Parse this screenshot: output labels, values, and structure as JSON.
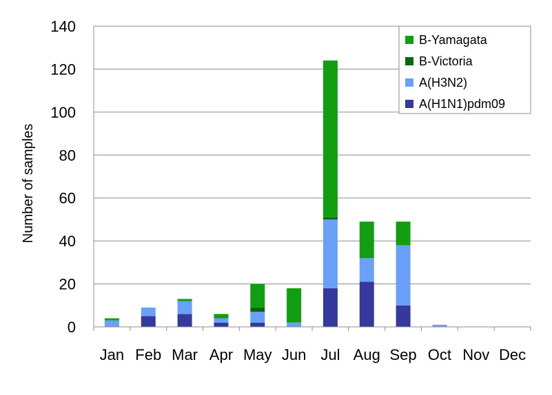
{
  "chart_data": {
    "type": "bar",
    "stacked": true,
    "title": "",
    "xlabel": "",
    "ylabel": "Number of samples",
    "ylim": [
      0,
      140
    ],
    "yticks": [
      0,
      20,
      40,
      60,
      80,
      100,
      120,
      140
    ],
    "grid": true,
    "legend_position": "top-right",
    "categories": [
      "Jan",
      "Feb",
      "Mar",
      "Apr",
      "May",
      "Jun",
      "Jul",
      "Aug",
      "Sep",
      "Oct",
      "Nov",
      "Dec"
    ],
    "series": [
      {
        "name": "A(H1N1)pdm09",
        "color": "#35399b",
        "values": [
          0,
          5,
          6,
          2,
          2,
          0,
          18,
          21,
          10,
          0,
          0,
          0
        ]
      },
      {
        "name": "A(H3N2)",
        "color": "#6aa0f8",
        "values": [
          3,
          4,
          6,
          2,
          5,
          2,
          32,
          11,
          28,
          1,
          0,
          0
        ]
      },
      {
        "name": "B-Victoria",
        "color": "#0a6a0a",
        "values": [
          0,
          0,
          0,
          0,
          2,
          0,
          1,
          0,
          0,
          0,
          0,
          0
        ]
      },
      {
        "name": "B-Yamagata",
        "color": "#119f11",
        "values": [
          1,
          0,
          1,
          2,
          11,
          16,
          73,
          17,
          11,
          0,
          0,
          0
        ]
      }
    ],
    "legend_order": [
      "B-Yamagata",
      "B-Victoria",
      "A(H3N2)",
      "A(H1N1)pdm09"
    ]
  }
}
